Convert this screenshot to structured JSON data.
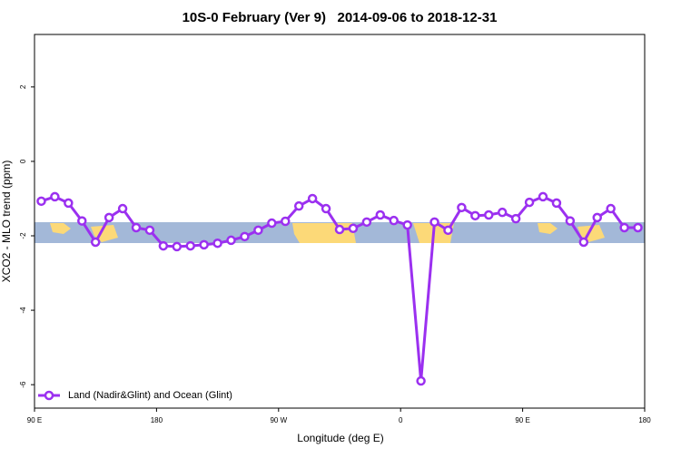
{
  "chart_data": {
    "type": "line",
    "title": "10S-0 February (Ver 9)   2014-09-06 to 2018-12-31",
    "x_label": "Longitude (deg E)",
    "y_label": "XCO2 - MLO trend (ppm)",
    "xlim": [
      90,
      540
    ],
    "xticks": [
      {
        "value": 90,
        "label": "90 E"
      },
      {
        "value": 180,
        "label": "180"
      },
      {
        "value": 270,
        "label": "90 W"
      },
      {
        "value": 360,
        "label": "0"
      },
      {
        "value": 450,
        "label": "90 E"
      },
      {
        "value": 540,
        "label": "180"
      }
    ],
    "ylim": [
      -6.63,
      3.41
    ],
    "yticks": [
      -6,
      -4,
      -2,
      0,
      2
    ],
    "legend": "bottom-left",
    "series": [
      {
        "name": "Land (Nadir&Glint) and Ocean (Glint)",
        "color": "#9b30f0",
        "x": [
          95,
          105,
          115,
          125,
          135,
          145,
          155,
          165,
          175,
          185,
          195,
          205,
          215,
          225,
          235,
          245,
          255,
          265,
          275,
          285,
          295,
          305,
          315,
          325,
          335,
          345,
          355,
          365,
          375,
          385,
          395,
          405,
          415,
          425,
          435,
          445,
          455,
          465,
          475,
          485,
          495,
          505,
          515,
          525,
          535
        ],
        "values": [
          -1.07,
          -0.95,
          -1.12,
          -1.6,
          -2.17,
          -1.51,
          -1.27,
          -1.78,
          -1.85,
          -2.27,
          -2.29,
          -2.27,
          -2.24,
          -2.2,
          -2.12,
          -2.02,
          -1.85,
          -1.66,
          -1.61,
          -1.2,
          -1.0,
          -1.27,
          -1.83,
          -1.8,
          -1.63,
          -1.44,
          -1.59,
          -1.71,
          -5.9,
          -1.63,
          -1.85,
          -1.24,
          -1.46,
          -1.44,
          -1.37,
          -1.54,
          -1.1,
          -0.95,
          -1.12,
          -1.6,
          -2.17,
          -1.51,
          -1.27,
          -1.78,
          -1.78
        ]
      }
    ]
  }
}
